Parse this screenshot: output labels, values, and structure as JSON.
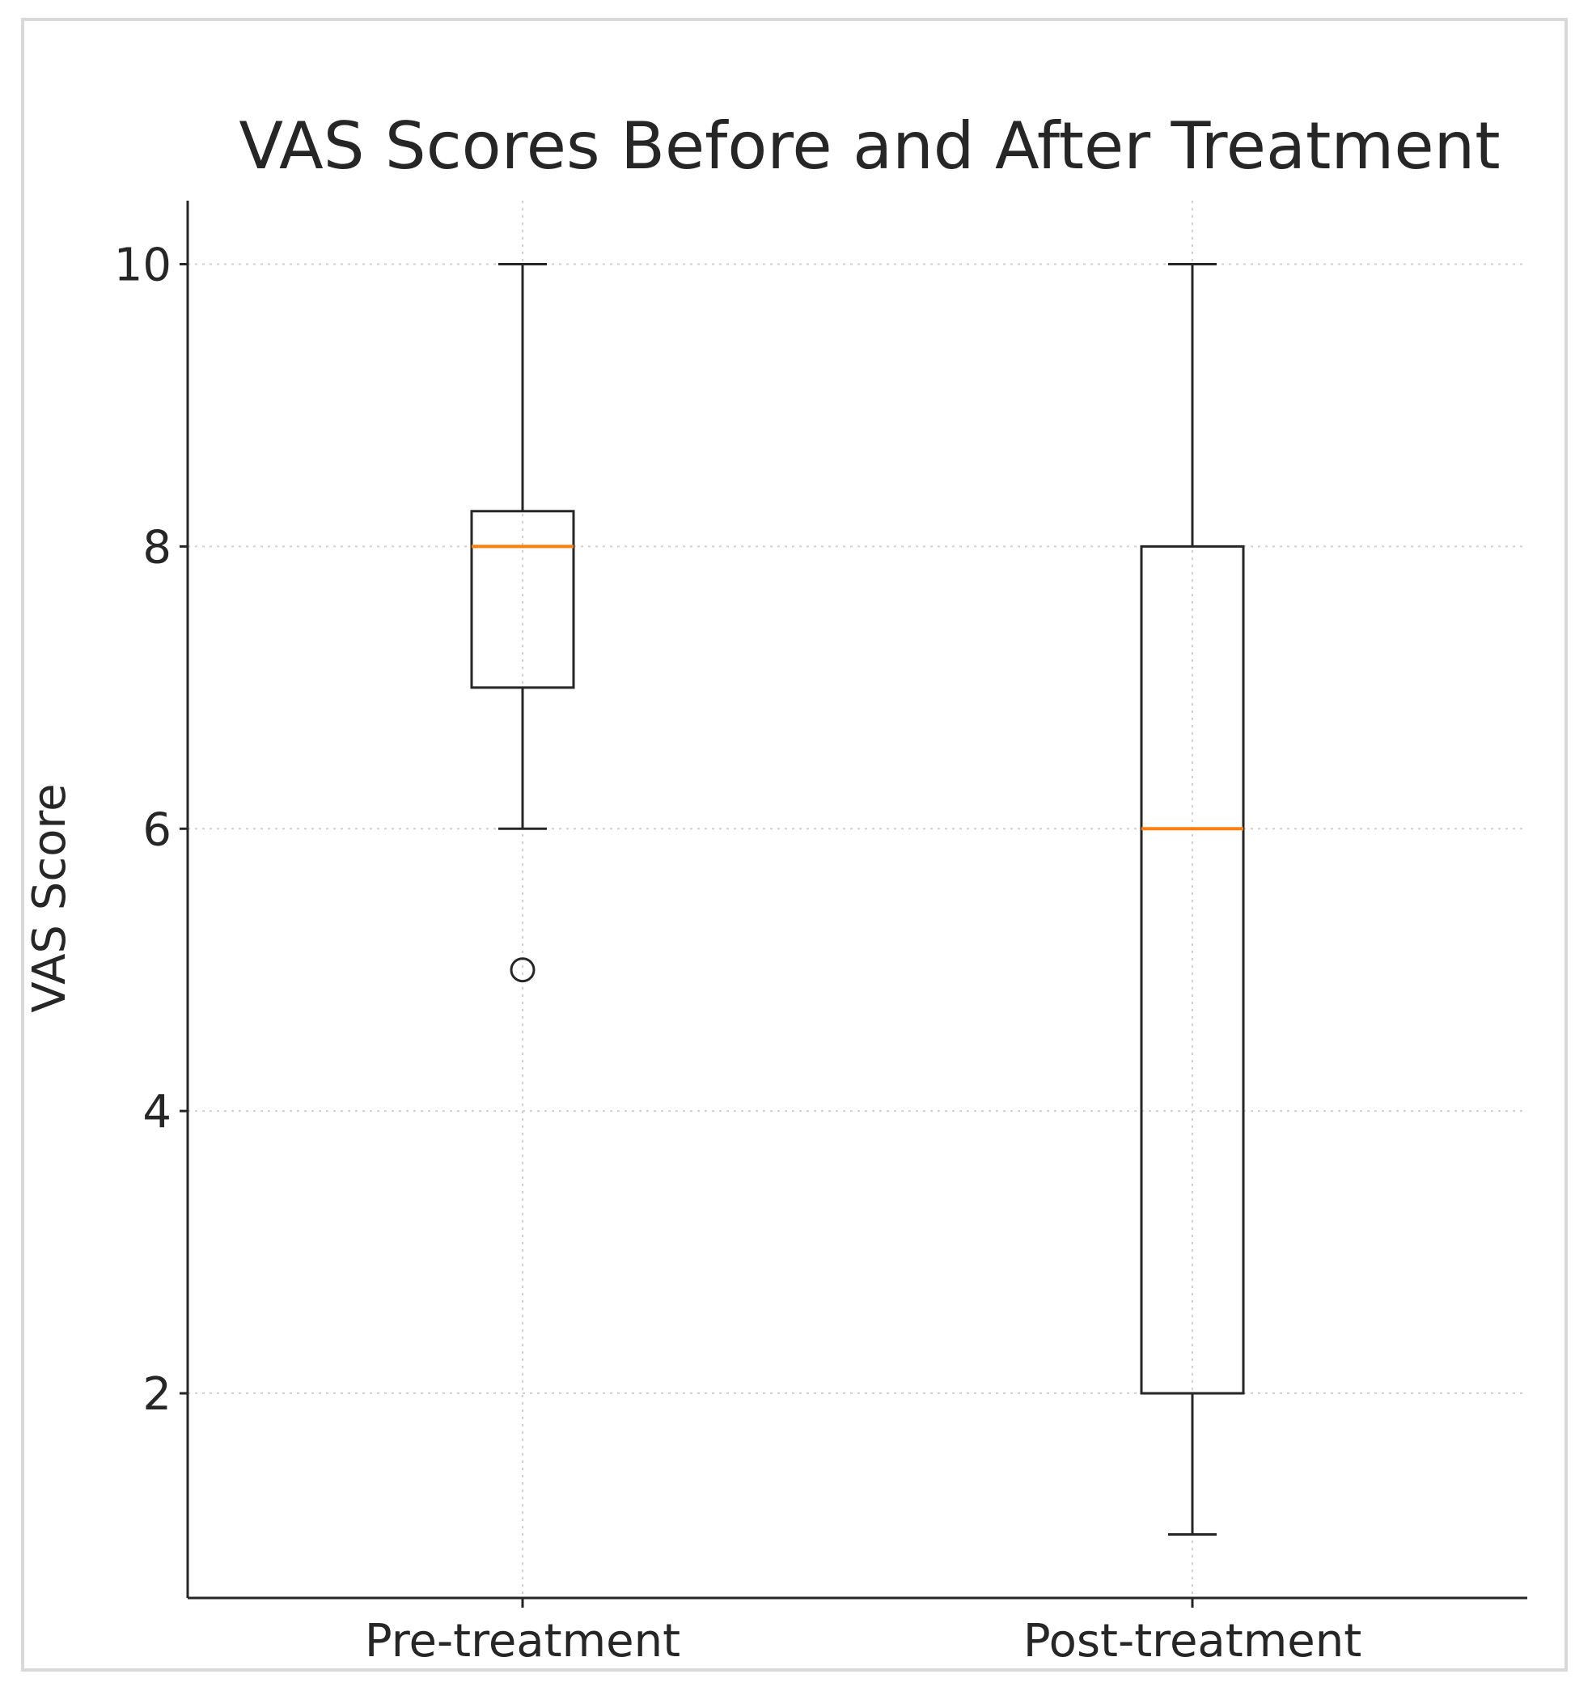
{
  "chart_data": {
    "type": "box",
    "title": "VAS Scores Before and After Treatment",
    "xlabel": "",
    "ylabel": "VAS Score",
    "categories": [
      "Pre-treatment",
      "Post-treatment"
    ],
    "ylim": [
      0.55,
      10.45
    ],
    "yticks": [
      2,
      4,
      6,
      8,
      10
    ],
    "grid": true,
    "boxes": [
      {
        "label": "Pre-treatment",
        "whisker_low": 6,
        "q1": 7,
        "median": 8,
        "q3": 8.25,
        "whisker_high": 10,
        "outliers": [
          5
        ]
      },
      {
        "label": "Post-treatment",
        "whisker_low": 1,
        "q1": 2,
        "median": 6,
        "q3": 8,
        "whisker_high": 10,
        "outliers": []
      }
    ],
    "colors": {
      "median": "#ff7f0e",
      "box": "#262626",
      "grid": "#d0d0d0",
      "text": "#262626"
    }
  }
}
